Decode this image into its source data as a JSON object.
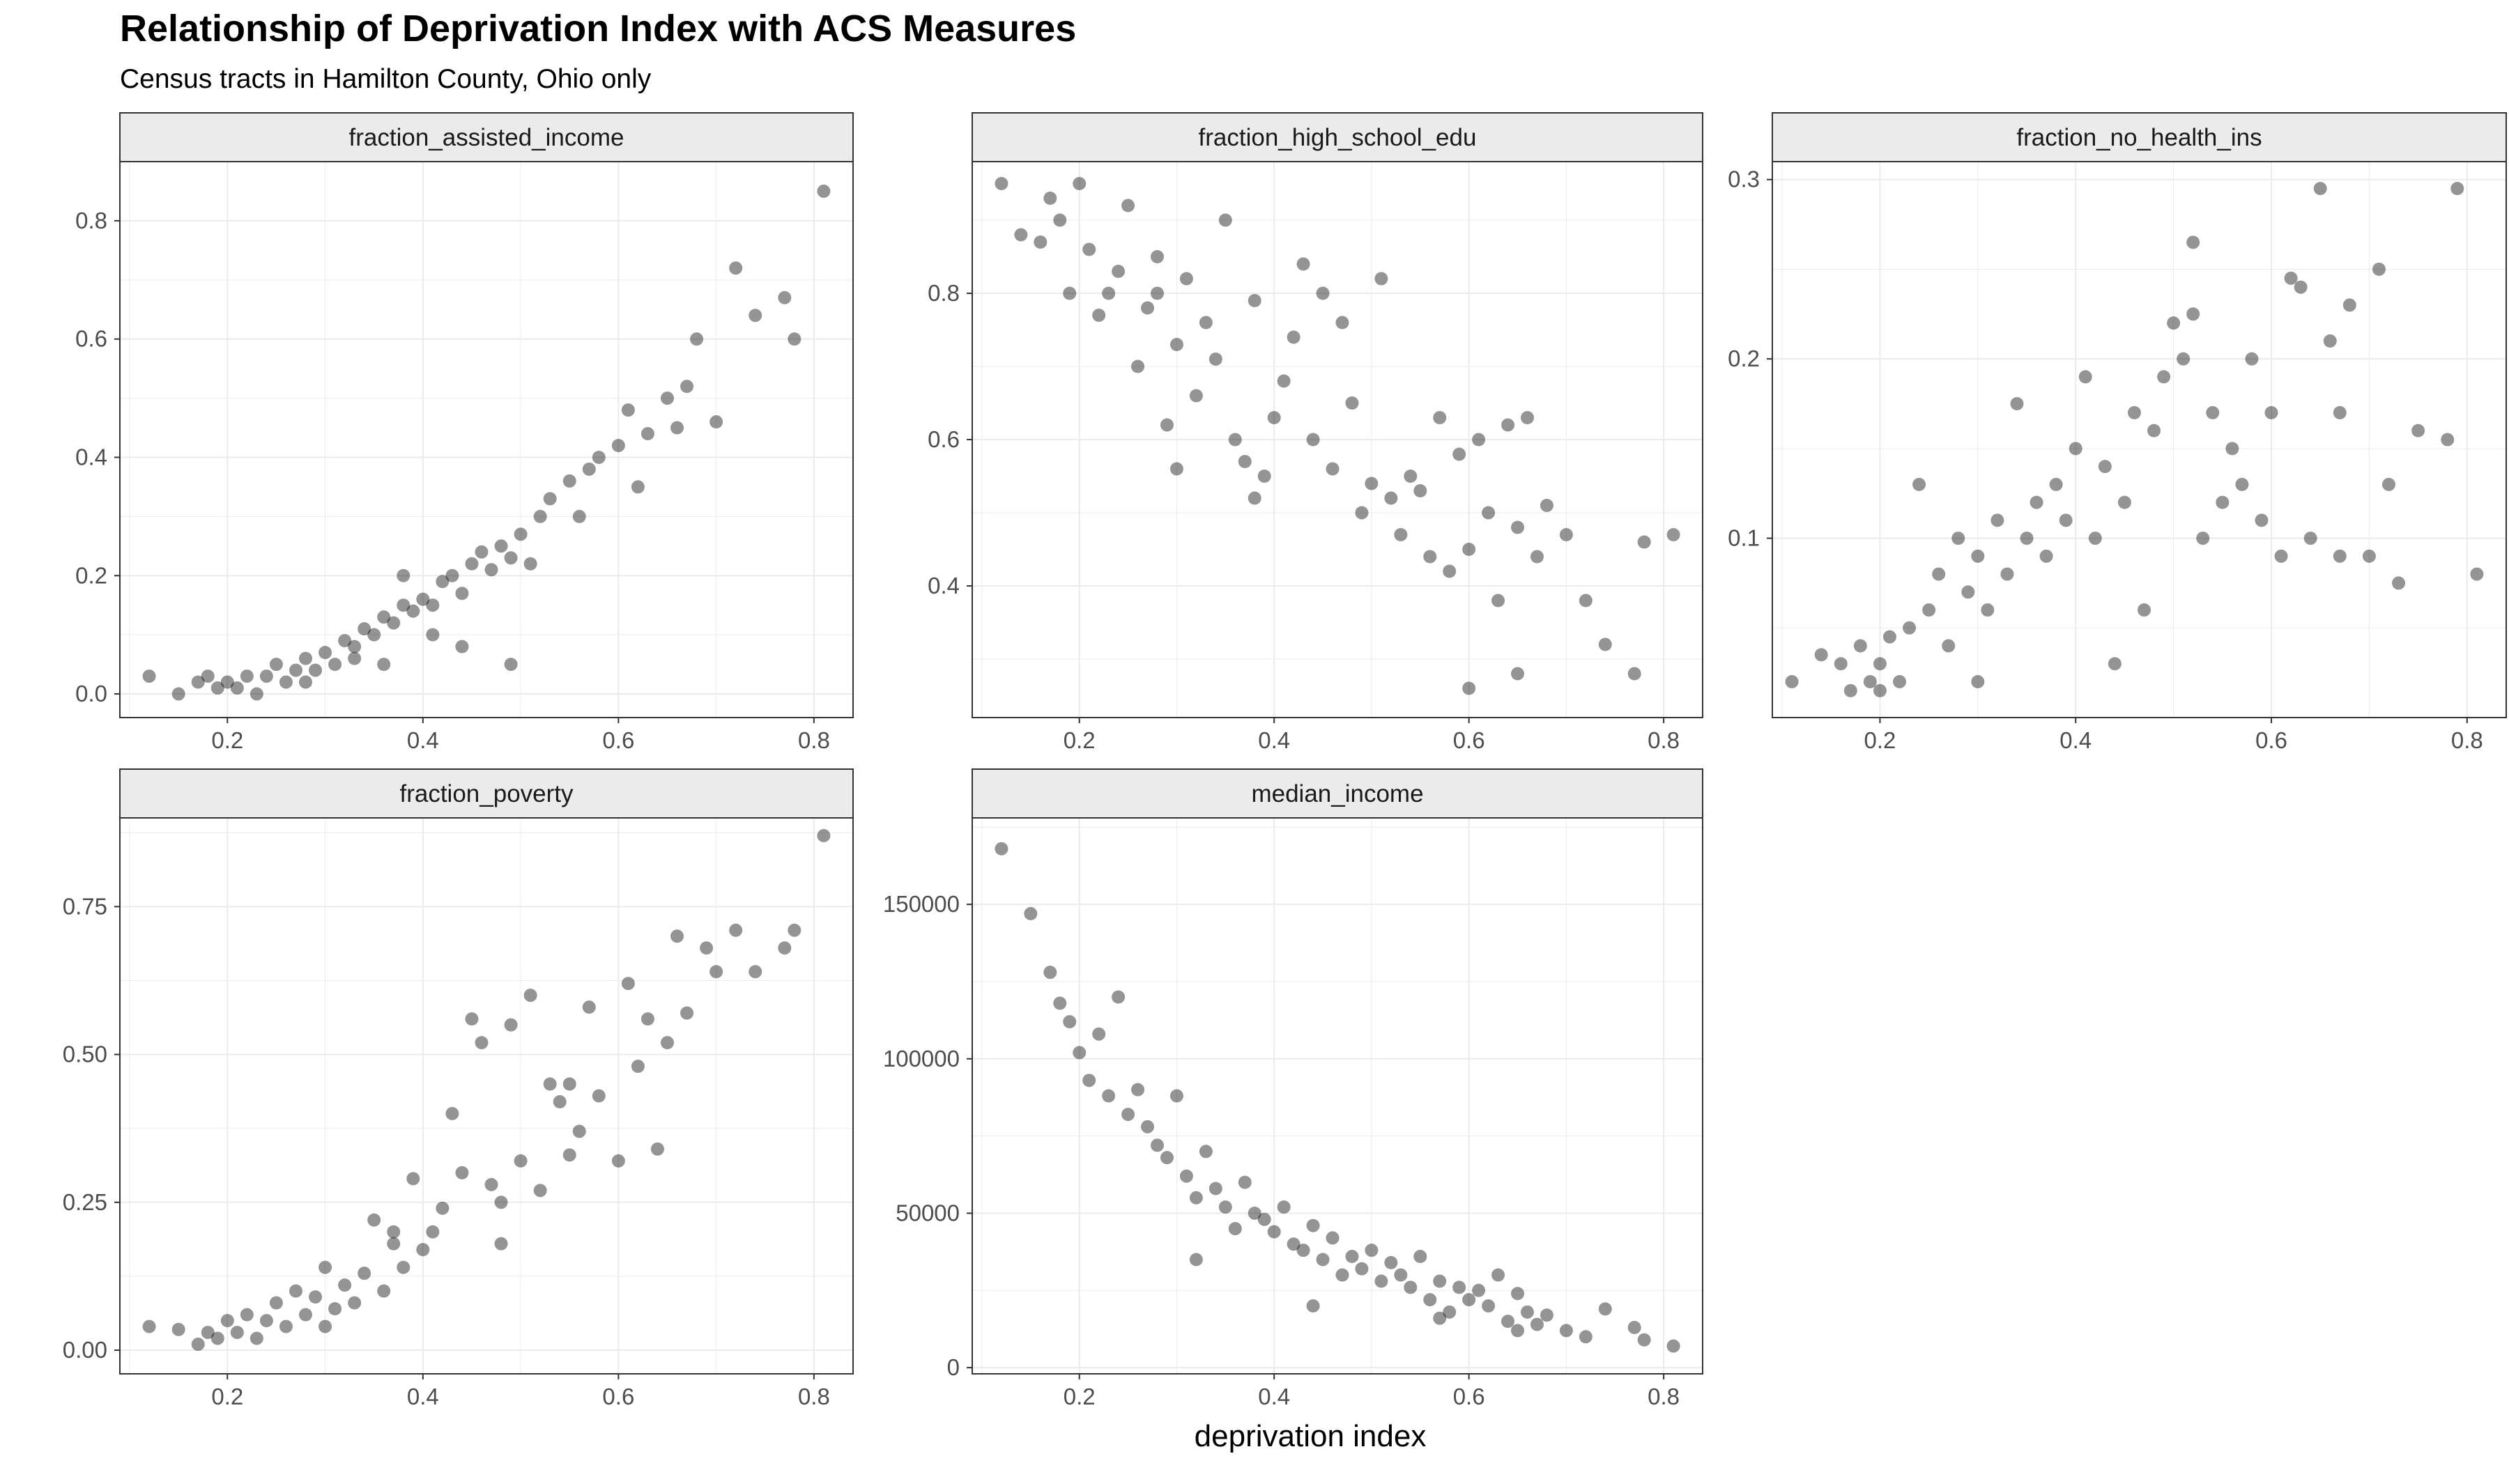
{
  "title": "Relationship of Deprivation Index with ACS Measures",
  "subtitle": "Census tracts in Hamilton County, Ohio only",
  "xlabel": "deprivation index",
  "colors": {
    "point": "#000000",
    "strip_bg": "#ebebeb",
    "grid": "#ebebeb",
    "frame": "#333333",
    "tick_text": "#4d4d4d"
  },
  "chart_data": [
    {
      "type": "scatter",
      "panel": "fraction_assisted_income",
      "xlim": [
        0.09,
        0.84
      ],
      "ylim": [
        -0.04,
        0.9
      ],
      "xticks": [
        0.2,
        0.4,
        0.6,
        0.8
      ],
      "xtick_labels": [
        "0.2",
        "0.4",
        "0.6",
        "0.8"
      ],
      "yticks": [
        0.0,
        0.2,
        0.4,
        0.6,
        0.8
      ],
      "ytick_labels": [
        "0.0",
        "0.2",
        "0.4",
        "0.6",
        "0.8"
      ],
      "points": [
        [
          0.12,
          0.03
        ],
        [
          0.15,
          0.0
        ],
        [
          0.17,
          0.02
        ],
        [
          0.18,
          0.03
        ],
        [
          0.19,
          0.01
        ],
        [
          0.2,
          0.02
        ],
        [
          0.21,
          0.01
        ],
        [
          0.22,
          0.03
        ],
        [
          0.23,
          0.0
        ],
        [
          0.24,
          0.03
        ],
        [
          0.25,
          0.05
        ],
        [
          0.26,
          0.02
        ],
        [
          0.27,
          0.04
        ],
        [
          0.28,
          0.06
        ],
        [
          0.29,
          0.04
        ],
        [
          0.3,
          0.07
        ],
        [
          0.31,
          0.05
        ],
        [
          0.32,
          0.09
        ],
        [
          0.33,
          0.08
        ],
        [
          0.34,
          0.11
        ],
        [
          0.35,
          0.1
        ],
        [
          0.36,
          0.13
        ],
        [
          0.37,
          0.12
        ],
        [
          0.38,
          0.15
        ],
        [
          0.39,
          0.14
        ],
        [
          0.4,
          0.16
        ],
        [
          0.41,
          0.15
        ],
        [
          0.42,
          0.19
        ],
        [
          0.43,
          0.2
        ],
        [
          0.44,
          0.17
        ],
        [
          0.45,
          0.22
        ],
        [
          0.46,
          0.24
        ],
        [
          0.47,
          0.21
        ],
        [
          0.48,
          0.25
        ],
        [
          0.49,
          0.23
        ],
        [
          0.5,
          0.27
        ],
        [
          0.51,
          0.22
        ],
        [
          0.52,
          0.3
        ],
        [
          0.53,
          0.33
        ],
        [
          0.55,
          0.36
        ],
        [
          0.56,
          0.3
        ],
        [
          0.57,
          0.38
        ],
        [
          0.58,
          0.4
        ],
        [
          0.6,
          0.42
        ],
        [
          0.61,
          0.48
        ],
        [
          0.62,
          0.35
        ],
        [
          0.63,
          0.44
        ],
        [
          0.65,
          0.5
        ],
        [
          0.66,
          0.45
        ],
        [
          0.67,
          0.52
        ],
        [
          0.68,
          0.6
        ],
        [
          0.7,
          0.46
        ],
        [
          0.72,
          0.72
        ],
        [
          0.74,
          0.64
        ],
        [
          0.77,
          0.67
        ],
        [
          0.78,
          0.6
        ],
        [
          0.81,
          0.85
        ],
        [
          0.49,
          0.05
        ],
        [
          0.44,
          0.08
        ],
        [
          0.36,
          0.05
        ],
        [
          0.28,
          0.02
        ],
        [
          0.33,
          0.06
        ],
        [
          0.38,
          0.2
        ],
        [
          0.41,
          0.1
        ]
      ]
    },
    {
      "type": "scatter",
      "panel": "fraction_high_school_edu",
      "xlim": [
        0.09,
        0.84
      ],
      "ylim": [
        0.22,
        0.98
      ],
      "xticks": [
        0.2,
        0.4,
        0.6,
        0.8
      ],
      "xtick_labels": [
        "0.2",
        "0.4",
        "0.6",
        "0.8"
      ],
      "yticks": [
        0.4,
        0.6,
        0.8
      ],
      "ytick_labels": [
        "0.4",
        "0.6",
        "0.8"
      ],
      "points": [
        [
          0.12,
          0.95
        ],
        [
          0.14,
          0.88
        ],
        [
          0.16,
          0.87
        ],
        [
          0.17,
          0.93
        ],
        [
          0.18,
          0.9
        ],
        [
          0.19,
          0.8
        ],
        [
          0.2,
          0.95
        ],
        [
          0.21,
          0.86
        ],
        [
          0.22,
          0.77
        ],
        [
          0.23,
          0.8
        ],
        [
          0.24,
          0.83
        ],
        [
          0.25,
          0.92
        ],
        [
          0.26,
          0.7
        ],
        [
          0.27,
          0.78
        ],
        [
          0.28,
          0.85
        ],
        [
          0.29,
          0.62
        ],
        [
          0.3,
          0.73
        ],
        [
          0.31,
          0.82
        ],
        [
          0.32,
          0.66
        ],
        [
          0.33,
          0.76
        ],
        [
          0.34,
          0.71
        ],
        [
          0.35,
          0.9
        ],
        [
          0.36,
          0.6
        ],
        [
          0.37,
          0.57
        ],
        [
          0.38,
          0.79
        ],
        [
          0.39,
          0.55
        ],
        [
          0.4,
          0.63
        ],
        [
          0.41,
          0.68
        ],
        [
          0.42,
          0.74
        ],
        [
          0.43,
          0.84
        ],
        [
          0.44,
          0.6
        ],
        [
          0.45,
          0.8
        ],
        [
          0.46,
          0.56
        ],
        [
          0.47,
          0.76
        ],
        [
          0.48,
          0.65
        ],
        [
          0.49,
          0.5
        ],
        [
          0.5,
          0.54
        ],
        [
          0.51,
          0.82
        ],
        [
          0.52,
          0.52
        ],
        [
          0.53,
          0.47
        ],
        [
          0.54,
          0.55
        ],
        [
          0.55,
          0.53
        ],
        [
          0.56,
          0.44
        ],
        [
          0.57,
          0.63
        ],
        [
          0.58,
          0.42
        ],
        [
          0.59,
          0.58
        ],
        [
          0.6,
          0.45
        ],
        [
          0.61,
          0.6
        ],
        [
          0.62,
          0.5
        ],
        [
          0.63,
          0.38
        ],
        [
          0.64,
          0.62
        ],
        [
          0.65,
          0.48
        ],
        [
          0.66,
          0.63
        ],
        [
          0.67,
          0.44
        ],
        [
          0.68,
          0.51
        ],
        [
          0.7,
          0.47
        ],
        [
          0.72,
          0.38
        ],
        [
          0.74,
          0.32
        ],
        [
          0.77,
          0.28
        ],
        [
          0.78,
          0.46
        ],
        [
          0.81,
          0.47
        ],
        [
          0.6,
          0.26
        ],
        [
          0.65,
          0.28
        ],
        [
          0.28,
          0.8
        ],
        [
          0.3,
          0.56
        ],
        [
          0.38,
          0.52
        ]
      ]
    },
    {
      "type": "scatter",
      "panel": "fraction_no_health_ins",
      "xlim": [
        0.09,
        0.84
      ],
      "ylim": [
        0.0,
        0.31
      ],
      "xticks": [
        0.2,
        0.4,
        0.6,
        0.8
      ],
      "xtick_labels": [
        "0.2",
        "0.4",
        "0.6",
        "0.8"
      ],
      "yticks": [
        0.1,
        0.2,
        0.3
      ],
      "ytick_labels": [
        "0.1",
        "0.2",
        "0.3"
      ],
      "points": [
        [
          0.11,
          0.02
        ],
        [
          0.14,
          0.035
        ],
        [
          0.16,
          0.03
        ],
        [
          0.17,
          0.015
        ],
        [
          0.18,
          0.04
        ],
        [
          0.19,
          0.02
        ],
        [
          0.2,
          0.03
        ],
        [
          0.21,
          0.045
        ],
        [
          0.22,
          0.02
        ],
        [
          0.23,
          0.05
        ],
        [
          0.24,
          0.13
        ],
        [
          0.25,
          0.06
        ],
        [
          0.26,
          0.08
        ],
        [
          0.27,
          0.04
        ],
        [
          0.28,
          0.1
        ],
        [
          0.29,
          0.07
        ],
        [
          0.3,
          0.09
        ],
        [
          0.31,
          0.06
        ],
        [
          0.32,
          0.11
        ],
        [
          0.33,
          0.08
        ],
        [
          0.34,
          0.175
        ],
        [
          0.35,
          0.1
        ],
        [
          0.36,
          0.12
        ],
        [
          0.37,
          0.09
        ],
        [
          0.38,
          0.13
        ],
        [
          0.39,
          0.11
        ],
        [
          0.4,
          0.15
        ],
        [
          0.41,
          0.19
        ],
        [
          0.42,
          0.1
        ],
        [
          0.43,
          0.14
        ],
        [
          0.44,
          0.03
        ],
        [
          0.45,
          0.12
        ],
        [
          0.46,
          0.17
        ],
        [
          0.47,
          0.06
        ],
        [
          0.48,
          0.16
        ],
        [
          0.49,
          0.19
        ],
        [
          0.5,
          0.22
        ],
        [
          0.51,
          0.2
        ],
        [
          0.52,
          0.265
        ],
        [
          0.53,
          0.1
        ],
        [
          0.54,
          0.17
        ],
        [
          0.55,
          0.12
        ],
        [
          0.56,
          0.15
        ],
        [
          0.57,
          0.13
        ],
        [
          0.58,
          0.2
        ],
        [
          0.59,
          0.11
        ],
        [
          0.6,
          0.17
        ],
        [
          0.61,
          0.09
        ],
        [
          0.62,
          0.245
        ],
        [
          0.63,
          0.24
        ],
        [
          0.64,
          0.1
        ],
        [
          0.65,
          0.295
        ],
        [
          0.66,
          0.21
        ],
        [
          0.67,
          0.09
        ],
        [
          0.68,
          0.23
        ],
        [
          0.7,
          0.09
        ],
        [
          0.71,
          0.25
        ],
        [
          0.72,
          0.13
        ],
        [
          0.73,
          0.075
        ],
        [
          0.75,
          0.16
        ],
        [
          0.78,
          0.155
        ],
        [
          0.79,
          0.295
        ],
        [
          0.81,
          0.08
        ],
        [
          0.67,
          0.17
        ],
        [
          0.52,
          0.225
        ],
        [
          0.3,
          0.02
        ],
        [
          0.2,
          0.015
        ]
      ]
    },
    {
      "type": "scatter",
      "panel": "fraction_poverty",
      "xlim": [
        0.09,
        0.84
      ],
      "ylim": [
        -0.04,
        0.9
      ],
      "xticks": [
        0.2,
        0.4,
        0.6,
        0.8
      ],
      "xtick_labels": [
        "0.2",
        "0.4",
        "0.6",
        "0.8"
      ],
      "yticks": [
        0.0,
        0.25,
        0.5,
        0.75
      ],
      "ytick_labels": [
        "0.00",
        "0.25",
        "0.50",
        "0.75"
      ],
      "points": [
        [
          0.12,
          0.04
        ],
        [
          0.15,
          0.035
        ],
        [
          0.17,
          0.01
        ],
        [
          0.18,
          0.03
        ],
        [
          0.19,
          0.02
        ],
        [
          0.2,
          0.05
        ],
        [
          0.21,
          0.03
        ],
        [
          0.22,
          0.06
        ],
        [
          0.23,
          0.02
        ],
        [
          0.24,
          0.05
        ],
        [
          0.25,
          0.08
        ],
        [
          0.26,
          0.04
        ],
        [
          0.27,
          0.1
        ],
        [
          0.28,
          0.06
        ],
        [
          0.29,
          0.09
        ],
        [
          0.3,
          0.14
        ],
        [
          0.31,
          0.07
        ],
        [
          0.32,
          0.11
        ],
        [
          0.33,
          0.08
        ],
        [
          0.34,
          0.13
        ],
        [
          0.35,
          0.22
        ],
        [
          0.36,
          0.1
        ],
        [
          0.37,
          0.18
        ],
        [
          0.38,
          0.14
        ],
        [
          0.39,
          0.29
        ],
        [
          0.4,
          0.17
        ],
        [
          0.41,
          0.2
        ],
        [
          0.42,
          0.24
        ],
        [
          0.43,
          0.4
        ],
        [
          0.44,
          0.3
        ],
        [
          0.45,
          0.56
        ],
        [
          0.46,
          0.52
        ],
        [
          0.47,
          0.28
        ],
        [
          0.48,
          0.25
        ],
        [
          0.49,
          0.55
        ],
        [
          0.5,
          0.32
        ],
        [
          0.51,
          0.6
        ],
        [
          0.52,
          0.27
        ],
        [
          0.53,
          0.45
        ],
        [
          0.54,
          0.42
        ],
        [
          0.55,
          0.33
        ],
        [
          0.56,
          0.37
        ],
        [
          0.57,
          0.58
        ],
        [
          0.58,
          0.43
        ],
        [
          0.6,
          0.32
        ],
        [
          0.61,
          0.62
        ],
        [
          0.62,
          0.48
        ],
        [
          0.63,
          0.56
        ],
        [
          0.64,
          0.34
        ],
        [
          0.65,
          0.52
        ],
        [
          0.66,
          0.7
        ],
        [
          0.67,
          0.57
        ],
        [
          0.69,
          0.68
        ],
        [
          0.7,
          0.64
        ],
        [
          0.72,
          0.71
        ],
        [
          0.74,
          0.64
        ],
        [
          0.77,
          0.68
        ],
        [
          0.78,
          0.71
        ],
        [
          0.81,
          0.87
        ],
        [
          0.37,
          0.2
        ],
        [
          0.3,
          0.04
        ],
        [
          0.48,
          0.18
        ],
        [
          0.55,
          0.45
        ]
      ]
    },
    {
      "type": "scatter",
      "panel": "median_income",
      "xlim": [
        0.09,
        0.84
      ],
      "ylim": [
        -2000,
        178000
      ],
      "xticks": [
        0.2,
        0.4,
        0.6,
        0.8
      ],
      "xtick_labels": [
        "0.2",
        "0.4",
        "0.6",
        "0.8"
      ],
      "yticks": [
        0,
        50000,
        100000,
        150000
      ],
      "ytick_labels": [
        "0",
        "50000",
        "100000",
        "150000"
      ],
      "points": [
        [
          0.12,
          168000
        ],
        [
          0.15,
          147000
        ],
        [
          0.17,
          128000
        ],
        [
          0.18,
          118000
        ],
        [
          0.19,
          112000
        ],
        [
          0.2,
          102000
        ],
        [
          0.21,
          93000
        ],
        [
          0.22,
          108000
        ],
        [
          0.23,
          88000
        ],
        [
          0.24,
          120000
        ],
        [
          0.25,
          82000
        ],
        [
          0.26,
          90000
        ],
        [
          0.27,
          78000
        ],
        [
          0.28,
          72000
        ],
        [
          0.29,
          68000
        ],
        [
          0.3,
          88000
        ],
        [
          0.31,
          62000
        ],
        [
          0.32,
          55000
        ],
        [
          0.33,
          70000
        ],
        [
          0.34,
          58000
        ],
        [
          0.35,
          52000
        ],
        [
          0.36,
          45000
        ],
        [
          0.37,
          60000
        ],
        [
          0.38,
          50000
        ],
        [
          0.39,
          48000
        ],
        [
          0.4,
          44000
        ],
        [
          0.41,
          52000
        ],
        [
          0.42,
          40000
        ],
        [
          0.43,
          38000
        ],
        [
          0.44,
          46000
        ],
        [
          0.45,
          35000
        ],
        [
          0.46,
          42000
        ],
        [
          0.47,
          30000
        ],
        [
          0.48,
          36000
        ],
        [
          0.49,
          32000
        ],
        [
          0.5,
          38000
        ],
        [
          0.51,
          28000
        ],
        [
          0.52,
          34000
        ],
        [
          0.53,
          30000
        ],
        [
          0.54,
          26000
        ],
        [
          0.55,
          36000
        ],
        [
          0.56,
          22000
        ],
        [
          0.57,
          28000
        ],
        [
          0.58,
          18000
        ],
        [
          0.59,
          26000
        ],
        [
          0.6,
          22000
        ],
        [
          0.61,
          25000
        ],
        [
          0.62,
          20000
        ],
        [
          0.63,
          30000
        ],
        [
          0.64,
          15000
        ],
        [
          0.65,
          24000
        ],
        [
          0.66,
          18000
        ],
        [
          0.67,
          14000
        ],
        [
          0.68,
          17000
        ],
        [
          0.7,
          12000
        ],
        [
          0.72,
          10000
        ],
        [
          0.74,
          19000
        ],
        [
          0.77,
          13000
        ],
        [
          0.78,
          9000
        ],
        [
          0.81,
          7000
        ],
        [
          0.32,
          35000
        ],
        [
          0.44,
          20000
        ],
        [
          0.57,
          16000
        ],
        [
          0.65,
          12000
        ]
      ]
    }
  ]
}
